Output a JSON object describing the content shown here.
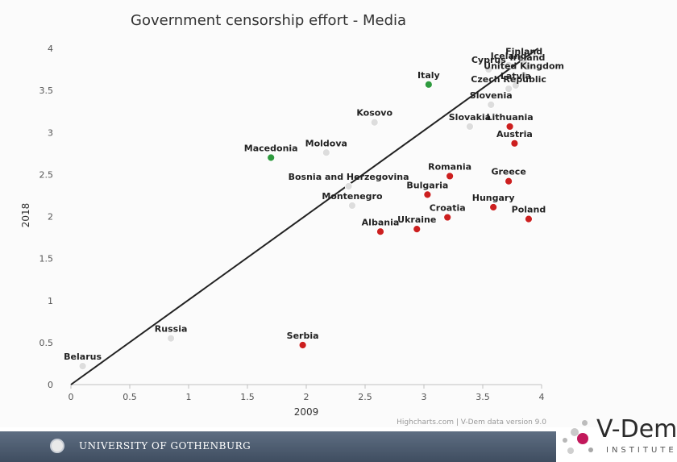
{
  "chart_data": {
    "type": "scatter",
    "title": "Government censorship effort - Media",
    "xlabel": "2009",
    "ylabel": "2018",
    "xlim": [
      0,
      4
    ],
    "ylim": [
      0,
      4
    ],
    "xticks": [
      "0",
      "0.5",
      "1",
      "1.5",
      "2",
      "2.5",
      "3",
      "3.5",
      "4"
    ],
    "yticks": [
      "0",
      "0.5",
      "1",
      "1.5",
      "2",
      "2.5",
      "3",
      "3.5",
      "4"
    ],
    "grid": false,
    "legend": "none",
    "points": [
      {
        "label": "Belarus",
        "x": 0.1,
        "y": 0.22,
        "color": "#dddddd"
      },
      {
        "label": "Russia",
        "x": 0.85,
        "y": 0.55,
        "color": "#dddddd"
      },
      {
        "label": "Serbia",
        "x": 1.97,
        "y": 0.47,
        "color": "#cc1f1f"
      },
      {
        "label": "Macedonia",
        "x": 1.7,
        "y": 2.7,
        "color": "#2e9a3e"
      },
      {
        "label": "Moldova",
        "x": 2.17,
        "y": 2.76,
        "color": "#dddddd"
      },
      {
        "label": "Kosovo",
        "x": 2.58,
        "y": 3.12,
        "color": "#dddddd"
      },
      {
        "label": "Bosnia and Herzegovina",
        "x": 2.36,
        "y": 2.36,
        "color": "#dddddd"
      },
      {
        "label": "Montenegro",
        "x": 2.39,
        "y": 2.13,
        "color": "#dddddd"
      },
      {
        "label": "Albania",
        "x": 2.63,
        "y": 1.82,
        "color": "#cc1f1f"
      },
      {
        "label": "Ukraine",
        "x": 2.94,
        "y": 1.85,
        "color": "#cc1f1f"
      },
      {
        "label": "Italy",
        "x": 3.04,
        "y": 3.57,
        "color": "#2e9a3e"
      },
      {
        "label": "Romania",
        "x": 3.22,
        "y": 2.48,
        "color": "#cc1f1f"
      },
      {
        "label": "Bulgaria",
        "x": 3.03,
        "y": 2.26,
        "color": "#cc1f1f"
      },
      {
        "label": "Croatia",
        "x": 3.2,
        "y": 1.99,
        "color": "#cc1f1f"
      },
      {
        "label": "Hungary",
        "x": 3.59,
        "y": 2.11,
        "color": "#cc1f1f"
      },
      {
        "label": "Greece",
        "x": 3.72,
        "y": 2.42,
        "color": "#cc1f1f"
      },
      {
        "label": "Poland",
        "x": 3.89,
        "y": 1.97,
        "color": "#cc1f1f"
      },
      {
        "label": "Austria",
        "x": 3.77,
        "y": 2.87,
        "color": "#cc1f1f"
      },
      {
        "label": "Lithuania",
        "x": 3.73,
        "y": 3.07,
        "color": "#cc1f1f"
      },
      {
        "label": "Slovakia",
        "x": 3.39,
        "y": 3.07,
        "color": "#dddddd"
      },
      {
        "label": "Slovenia",
        "x": 3.57,
        "y": 3.33,
        "color": "#dddddd"
      },
      {
        "label": "Czech Republic",
        "x": 3.72,
        "y": 3.52,
        "color": "#dddddd"
      },
      {
        "label": "Cyprus",
        "x": 3.55,
        "y": 3.75,
        "color": "#dddddd"
      },
      {
        "label": "Latvia",
        "x": 3.78,
        "y": 3.56,
        "color": "#dddddd"
      },
      {
        "label": "United Kingdom",
        "x": 3.85,
        "y": 3.68,
        "color": "#dddddd"
      },
      {
        "label": "Iceland",
        "x": 3.72,
        "y": 3.8,
        "color": "#dddddd"
      },
      {
        "label": "Finland",
        "x": 3.85,
        "y": 3.85,
        "color": "#dddddd"
      },
      {
        "label": "Ireland",
        "x": 3.88,
        "y": 3.78,
        "color": "#dddddd"
      }
    ],
    "trendline": {
      "from": [
        0,
        0
      ],
      "to": [
        3.97,
        4.0
      ]
    }
  },
  "credits": "Highcharts.com | V-Dem data version 9.0",
  "footer": {
    "university": "UNIVERSITY OF GOTHENBURG"
  },
  "logo": {
    "name": "V-Dem",
    "subtitle": "INSTITUTE"
  }
}
